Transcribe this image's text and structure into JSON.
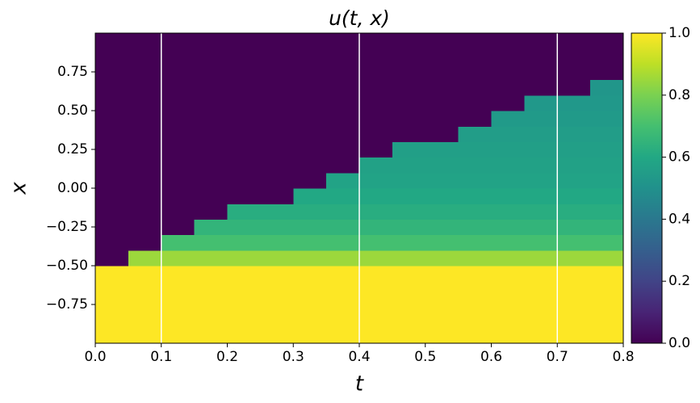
{
  "chart_data": {
    "type": "heatmap",
    "title": "u(t, x)",
    "x_label": "t",
    "y_label": "x",
    "xlim": [
      0,
      0.8
    ],
    "ylim": [
      -1,
      1
    ],
    "xticks": [
      {
        "value": 0,
        "label": "0.0"
      },
      0.1,
      0.2,
      0.3,
      0.4,
      0.5,
      0.6,
      0.7,
      0.8
    ],
    "yticks": [
      {
        "value": -0.75,
        "label": "−0.75"
      },
      {
        "value": -0.5,
        "label": "−0.50"
      },
      {
        "value": -0.25,
        "label": "−0.25"
      },
      {
        "value": 0,
        "label": "0.00"
      },
      0.25,
      {
        "value": 0.5,
        "label": "0.50"
      },
      0.75
    ],
    "colormap": "viridis",
    "clim": [
      0,
      1
    ],
    "cticks": [
      {
        "value": 0,
        "label": "0.0"
      },
      0.2,
      0.4,
      0.6,
      0.8,
      {
        "value": 1,
        "label": "1.0"
      }
    ],
    "vlines": [
      0.1,
      0.4,
      0.7
    ],
    "vline_color": "#ffffff",
    "x": [
      0.025,
      0.075,
      0.125,
      0.175,
      0.225,
      0.275,
      0.325,
      0.375,
      0.425,
      0.475,
      0.525,
      0.575,
      0.625,
      0.675,
      0.725,
      0.775
    ],
    "y": [
      -0.95,
      -0.85,
      -0.75,
      -0.65,
      -0.55,
      -0.45,
      -0.35,
      -0.25,
      -0.15,
      -0.05,
      0.05,
      0.15,
      0.25,
      0.35,
      0.45,
      0.55,
      0.65,
      0.75,
      0.85,
      0.95
    ],
    "z": [
      [
        1,
        1,
        1,
        1,
        1,
        1,
        1,
        1,
        1,
        1,
        1,
        1,
        1,
        1,
        1,
        1
      ],
      [
        1,
        1,
        1,
        1,
        1,
        1,
        1,
        1,
        1,
        1,
        1,
        1,
        1,
        1,
        1,
        1
      ],
      [
        1,
        1,
        1,
        1,
        1,
        1,
        1,
        1,
        1,
        1,
        1,
        1,
        1,
        1,
        1,
        1
      ],
      [
        1,
        1,
        1,
        1,
        1,
        1,
        1,
        1,
        1,
        1,
        1,
        1,
        1,
        1,
        1,
        1
      ],
      [
        1,
        1,
        1,
        1,
        1,
        1,
        1,
        1,
        1,
        1,
        1,
        1,
        1,
        1,
        1,
        1
      ],
      [
        0,
        0.85,
        0.85,
        0.85,
        0.85,
        0.85,
        0.85,
        0.85,
        0.85,
        0.85,
        0.85,
        0.85,
        0.85,
        0.85,
        0.85,
        0.85
      ],
      [
        0,
        0,
        0.7,
        0.7,
        0.7,
        0.7,
        0.7,
        0.7,
        0.7,
        0.7,
        0.7,
        0.7,
        0.7,
        0.7,
        0.7,
        0.7
      ],
      [
        0,
        0,
        0,
        0.65,
        0.65,
        0.65,
        0.65,
        0.65,
        0.65,
        0.65,
        0.65,
        0.65,
        0.65,
        0.65,
        0.65,
        0.65
      ],
      [
        0,
        0,
        0,
        0,
        0.62,
        0.62,
        0.62,
        0.62,
        0.62,
        0.62,
        0.62,
        0.62,
        0.62,
        0.62,
        0.62,
        0.62
      ],
      [
        0,
        0,
        0,
        0,
        0,
        0,
        0.6,
        0.6,
        0.6,
        0.6,
        0.6,
        0.6,
        0.6,
        0.6,
        0.6,
        0.6
      ],
      [
        0,
        0,
        0,
        0,
        0,
        0,
        0,
        0.58,
        0.58,
        0.58,
        0.58,
        0.58,
        0.58,
        0.58,
        0.58,
        0.58
      ],
      [
        0,
        0,
        0,
        0,
        0,
        0,
        0,
        0,
        0.57,
        0.57,
        0.57,
        0.57,
        0.57,
        0.57,
        0.57,
        0.57
      ],
      [
        0,
        0,
        0,
        0,
        0,
        0,
        0,
        0,
        0,
        0.56,
        0.56,
        0.56,
        0.56,
        0.56,
        0.56,
        0.56
      ],
      [
        0,
        0,
        0,
        0,
        0,
        0,
        0,
        0,
        0,
        0,
        0,
        0.55,
        0.55,
        0.55,
        0.55,
        0.55
      ],
      [
        0,
        0,
        0,
        0,
        0,
        0,
        0,
        0,
        0,
        0,
        0,
        0,
        0.54,
        0.54,
        0.54,
        0.54
      ],
      [
        0,
        0,
        0,
        0,
        0,
        0,
        0,
        0,
        0,
        0,
        0,
        0,
        0,
        0.53,
        0.53,
        0.53
      ],
      [
        0,
        0,
        0,
        0,
        0,
        0,
        0,
        0,
        0,
        0,
        0,
        0,
        0,
        0,
        0,
        0.52
      ],
      [
        0,
        0,
        0,
        0,
        0,
        0,
        0,
        0,
        0,
        0,
        0,
        0,
        0,
        0,
        0,
        0
      ],
      [
        0,
        0,
        0,
        0,
        0,
        0,
        0,
        0,
        0,
        0,
        0,
        0,
        0,
        0,
        0,
        0
      ],
      [
        0,
        0,
        0,
        0,
        0,
        0,
        0,
        0,
        0,
        0,
        0,
        0,
        0,
        0,
        0,
        0
      ]
    ]
  }
}
